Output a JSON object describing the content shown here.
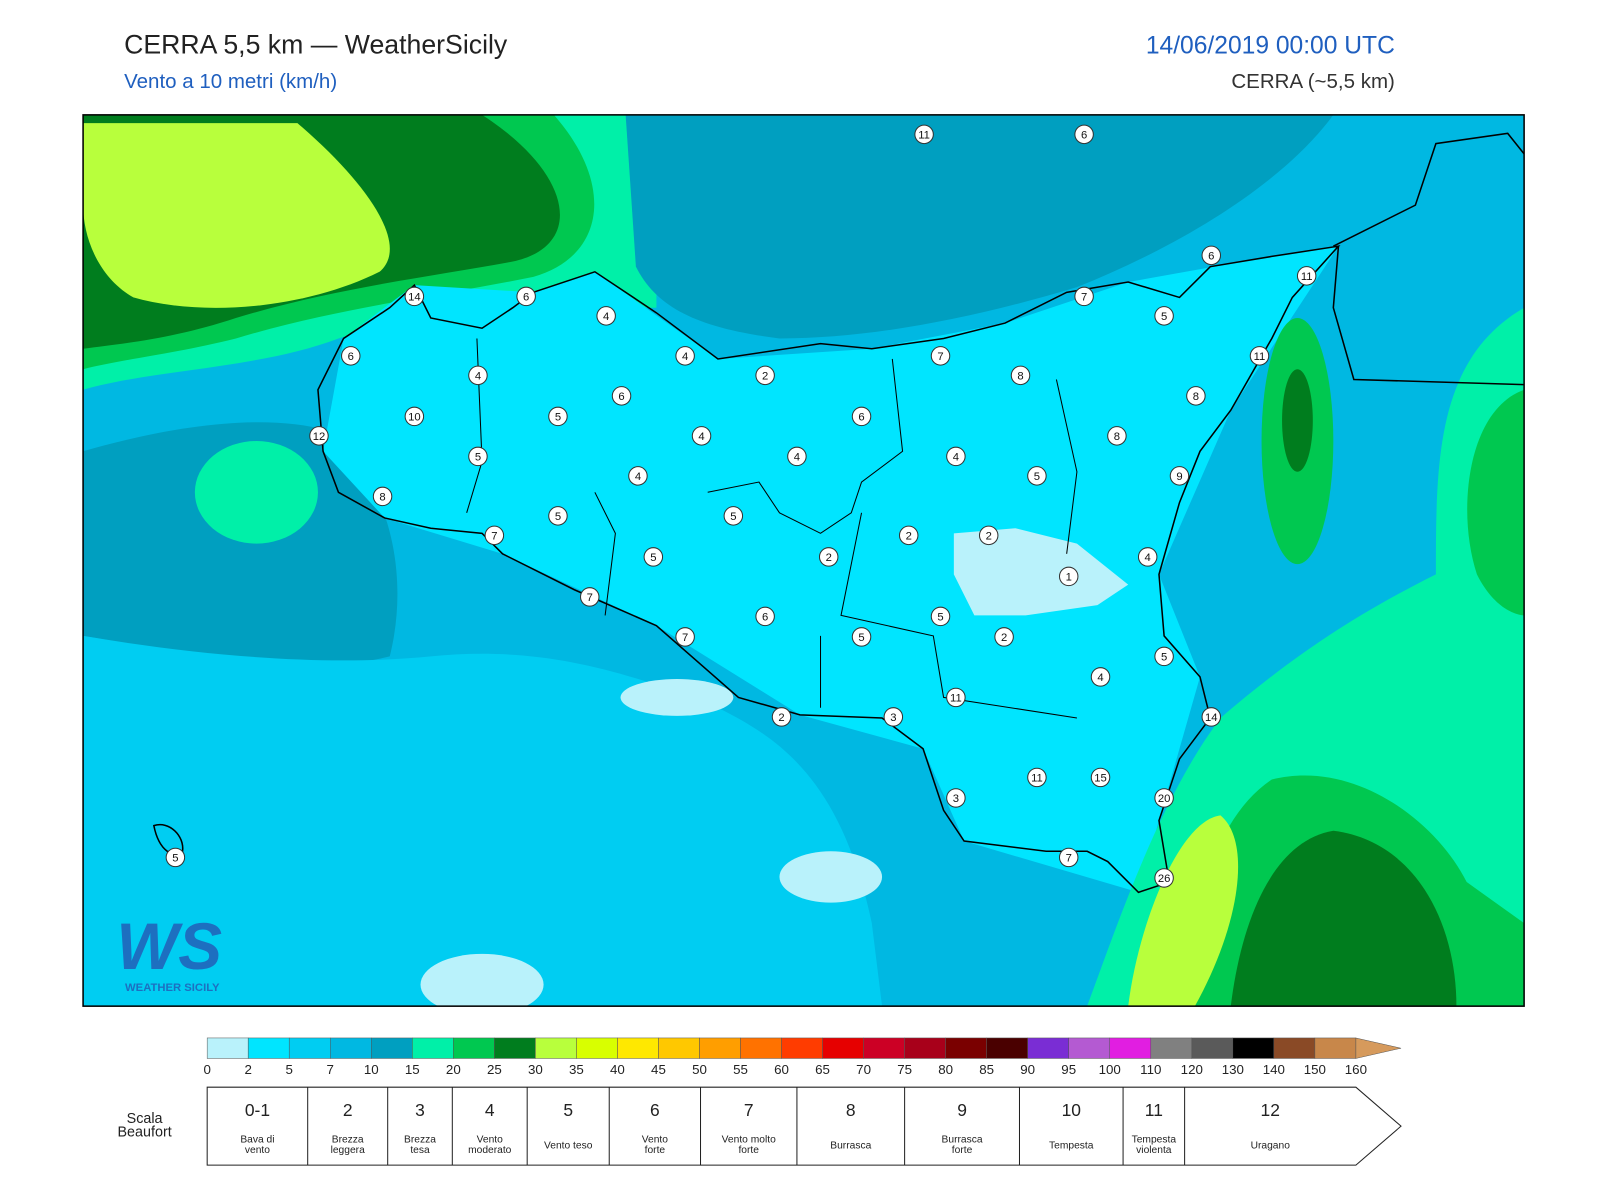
{
  "header": {
    "title": "CERRA 5,5 km — WeatherSicily",
    "subtitle": "Vento a 10 metri (km/h)",
    "date": "14/06/2019 00:00 UTC",
    "model": "CERRA (~5,5 km)"
  },
  "logo": {
    "mark": "WS",
    "text": "WEATHER SICILY"
  },
  "map": {
    "station_values": [
      "11",
      "6",
      "6",
      "11",
      "14",
      "6",
      "4",
      "7",
      "5",
      "6",
      "4",
      "7",
      "11",
      "4",
      "2",
      "8",
      "6",
      "8",
      "10",
      "5",
      "6",
      "12",
      "4",
      "8",
      "5",
      "4",
      "4",
      "4",
      "5",
      "9",
      "8",
      "5",
      "5",
      "7",
      "2",
      "2",
      "5",
      "2",
      "4",
      "1",
      "7",
      "6",
      "5",
      "7",
      "5",
      "2",
      "5",
      "4",
      "11",
      "14",
      "2",
      "3",
      "11",
      "15",
      "3",
      "20",
      "5",
      "7",
      "26"
    ]
  },
  "colorbar": {
    "ticks": [
      "0",
      "2",
      "5",
      "7",
      "10",
      "15",
      "20",
      "25",
      "30",
      "35",
      "40",
      "45",
      "50",
      "55",
      "60",
      "65",
      "70",
      "75",
      "80",
      "85",
      "90",
      "95",
      "100",
      "110",
      "120",
      "130",
      "140",
      "150",
      "160"
    ],
    "colors": [
      "#b9f2fb",
      "#00e5ff",
      "#00cdf2",
      "#00b8e2",
      "#009fc0",
      "#00f0a8",
      "#00c850",
      "#007d1e",
      "#b8ff3c",
      "#d8ff00",
      "#ffe800",
      "#ffc800",
      "#ff9e00",
      "#ff7200",
      "#ff3c00",
      "#e60000",
      "#cc0025",
      "#a8001a",
      "#7a0000",
      "#4a0000",
      "#7a2dd4",
      "#b45ad2",
      "#e11ee1",
      "#808080",
      "#5a5a5a",
      "#000000",
      "#8a4a26",
      "#c8874a"
    ],
    "arrow_color": "#d69a5c"
  },
  "beaufort": {
    "label": [
      "Scala",
      "Beaufort"
    ],
    "levels": [
      {
        "force": "0-1",
        "desc": [
          "Bava di",
          "vento"
        ]
      },
      {
        "force": "2",
        "desc": [
          "Brezza",
          "leggera"
        ]
      },
      {
        "force": "3",
        "desc": [
          "Brezza",
          "tesa"
        ]
      },
      {
        "force": "4",
        "desc": [
          "Vento",
          "moderato"
        ]
      },
      {
        "force": "5",
        "desc": [
          "Vento teso"
        ]
      },
      {
        "force": "6",
        "desc": [
          "Vento",
          "forte"
        ]
      },
      {
        "force": "7",
        "desc": [
          "Vento molto",
          "forte"
        ]
      },
      {
        "force": "8",
        "desc": [
          "Burrasca"
        ]
      },
      {
        "force": "9",
        "desc": [
          "Burrasca",
          "forte"
        ]
      },
      {
        "force": "10",
        "desc": [
          "Tempesta"
        ]
      },
      {
        "force": "11",
        "desc": [
          "Tempesta",
          "violenta"
        ]
      },
      {
        "force": "12",
        "desc": [
          "Uragano"
        ]
      }
    ]
  }
}
